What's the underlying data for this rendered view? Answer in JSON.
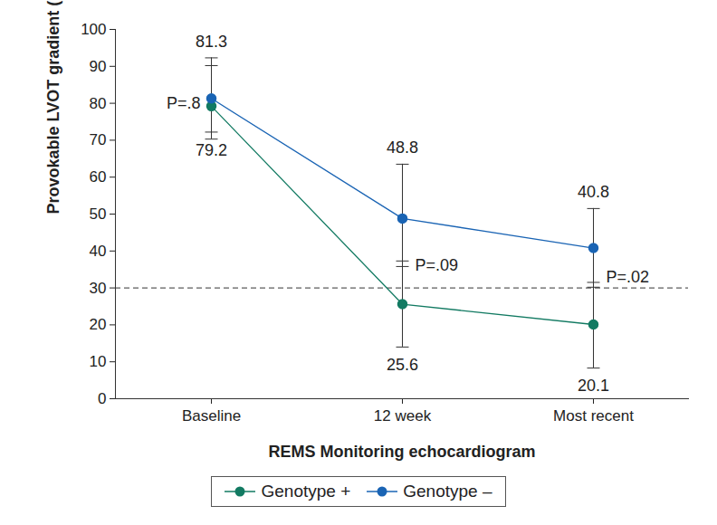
{
  "chart_data": {
    "type": "line",
    "x_label": "REMS Monitoring echocardiogram",
    "y_label": "Provokable LVOT gradient (mm Hg)",
    "categories": [
      "Baseline",
      "12 week",
      "Most recent"
    ],
    "series": [
      {
        "name": "Genotype +",
        "color": "#127a62",
        "marker": "circle",
        "line_style": "solid",
        "values": [
          79.2,
          25.6,
          20.1
        ],
        "lower": [
          72.2,
          14.0,
          8.3
        ],
        "upper": [
          90.2,
          37.3,
          31.5
        ]
      },
      {
        "name": "Genotype –",
        "color": "#1a64b4",
        "marker": "circle",
        "line_style": "solid",
        "values": [
          81.3,
          48.8,
          40.8
        ],
        "lower": [
          70.3,
          35.8,
          30.2
        ],
        "upper": [
          92.3,
          63.5,
          51.5
        ]
      }
    ],
    "ylim": [
      0,
      100
    ],
    "yticks": [
      0,
      10,
      20,
      30,
      40,
      50,
      60,
      70,
      80,
      90,
      100
    ],
    "reference_line": 30,
    "annotations": [
      {
        "text": "P=.8",
        "x": "Baseline",
        "y": 80
      },
      {
        "text": "P=.09",
        "x": "12 week",
        "y": 36
      },
      {
        "text": "P=.02",
        "x": "Most recent",
        "y": 33
      }
    ],
    "data_labels": true,
    "grid": false,
    "legend": "bottom"
  }
}
